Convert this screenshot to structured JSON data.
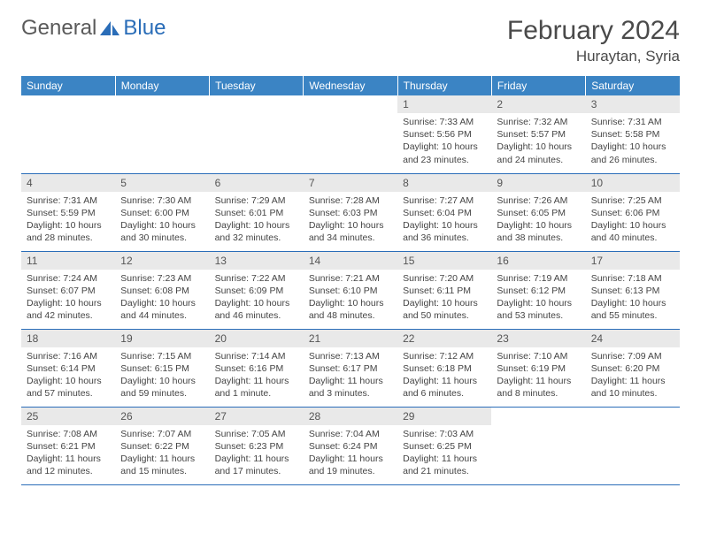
{
  "brand": {
    "part1": "General",
    "part2": "Blue"
  },
  "header": {
    "month_title": "February 2024",
    "location": "Huraytan, Syria"
  },
  "colors": {
    "header_blue": "#3b84c4",
    "border_blue": "#2a6db8",
    "daynum_bg": "#e9e9e9",
    "text": "#444444",
    "logo_gray": "#5a5a5a"
  },
  "weekdays": [
    "Sunday",
    "Monday",
    "Tuesday",
    "Wednesday",
    "Thursday",
    "Friday",
    "Saturday"
  ],
  "weeks": [
    [
      {
        "empty": true
      },
      {
        "empty": true
      },
      {
        "empty": true
      },
      {
        "empty": true
      },
      {
        "day": "1",
        "sunrise": "Sunrise: 7:33 AM",
        "sunset": "Sunset: 5:56 PM",
        "daylight": "Daylight: 10 hours and 23 minutes."
      },
      {
        "day": "2",
        "sunrise": "Sunrise: 7:32 AM",
        "sunset": "Sunset: 5:57 PM",
        "daylight": "Daylight: 10 hours and 24 minutes."
      },
      {
        "day": "3",
        "sunrise": "Sunrise: 7:31 AM",
        "sunset": "Sunset: 5:58 PM",
        "daylight": "Daylight: 10 hours and 26 minutes."
      }
    ],
    [
      {
        "day": "4",
        "sunrise": "Sunrise: 7:31 AM",
        "sunset": "Sunset: 5:59 PM",
        "daylight": "Daylight: 10 hours and 28 minutes."
      },
      {
        "day": "5",
        "sunrise": "Sunrise: 7:30 AM",
        "sunset": "Sunset: 6:00 PM",
        "daylight": "Daylight: 10 hours and 30 minutes."
      },
      {
        "day": "6",
        "sunrise": "Sunrise: 7:29 AM",
        "sunset": "Sunset: 6:01 PM",
        "daylight": "Daylight: 10 hours and 32 minutes."
      },
      {
        "day": "7",
        "sunrise": "Sunrise: 7:28 AM",
        "sunset": "Sunset: 6:03 PM",
        "daylight": "Daylight: 10 hours and 34 minutes."
      },
      {
        "day": "8",
        "sunrise": "Sunrise: 7:27 AM",
        "sunset": "Sunset: 6:04 PM",
        "daylight": "Daylight: 10 hours and 36 minutes."
      },
      {
        "day": "9",
        "sunrise": "Sunrise: 7:26 AM",
        "sunset": "Sunset: 6:05 PM",
        "daylight": "Daylight: 10 hours and 38 minutes."
      },
      {
        "day": "10",
        "sunrise": "Sunrise: 7:25 AM",
        "sunset": "Sunset: 6:06 PM",
        "daylight": "Daylight: 10 hours and 40 minutes."
      }
    ],
    [
      {
        "day": "11",
        "sunrise": "Sunrise: 7:24 AM",
        "sunset": "Sunset: 6:07 PM",
        "daylight": "Daylight: 10 hours and 42 minutes."
      },
      {
        "day": "12",
        "sunrise": "Sunrise: 7:23 AM",
        "sunset": "Sunset: 6:08 PM",
        "daylight": "Daylight: 10 hours and 44 minutes."
      },
      {
        "day": "13",
        "sunrise": "Sunrise: 7:22 AM",
        "sunset": "Sunset: 6:09 PM",
        "daylight": "Daylight: 10 hours and 46 minutes."
      },
      {
        "day": "14",
        "sunrise": "Sunrise: 7:21 AM",
        "sunset": "Sunset: 6:10 PM",
        "daylight": "Daylight: 10 hours and 48 minutes."
      },
      {
        "day": "15",
        "sunrise": "Sunrise: 7:20 AM",
        "sunset": "Sunset: 6:11 PM",
        "daylight": "Daylight: 10 hours and 50 minutes."
      },
      {
        "day": "16",
        "sunrise": "Sunrise: 7:19 AM",
        "sunset": "Sunset: 6:12 PM",
        "daylight": "Daylight: 10 hours and 53 minutes."
      },
      {
        "day": "17",
        "sunrise": "Sunrise: 7:18 AM",
        "sunset": "Sunset: 6:13 PM",
        "daylight": "Daylight: 10 hours and 55 minutes."
      }
    ],
    [
      {
        "day": "18",
        "sunrise": "Sunrise: 7:16 AM",
        "sunset": "Sunset: 6:14 PM",
        "daylight": "Daylight: 10 hours and 57 minutes."
      },
      {
        "day": "19",
        "sunrise": "Sunrise: 7:15 AM",
        "sunset": "Sunset: 6:15 PM",
        "daylight": "Daylight: 10 hours and 59 minutes."
      },
      {
        "day": "20",
        "sunrise": "Sunrise: 7:14 AM",
        "sunset": "Sunset: 6:16 PM",
        "daylight": "Daylight: 11 hours and 1 minute."
      },
      {
        "day": "21",
        "sunrise": "Sunrise: 7:13 AM",
        "sunset": "Sunset: 6:17 PM",
        "daylight": "Daylight: 11 hours and 3 minutes."
      },
      {
        "day": "22",
        "sunrise": "Sunrise: 7:12 AM",
        "sunset": "Sunset: 6:18 PM",
        "daylight": "Daylight: 11 hours and 6 minutes."
      },
      {
        "day": "23",
        "sunrise": "Sunrise: 7:10 AM",
        "sunset": "Sunset: 6:19 PM",
        "daylight": "Daylight: 11 hours and 8 minutes."
      },
      {
        "day": "24",
        "sunrise": "Sunrise: 7:09 AM",
        "sunset": "Sunset: 6:20 PM",
        "daylight": "Daylight: 11 hours and 10 minutes."
      }
    ],
    [
      {
        "day": "25",
        "sunrise": "Sunrise: 7:08 AM",
        "sunset": "Sunset: 6:21 PM",
        "daylight": "Daylight: 11 hours and 12 minutes."
      },
      {
        "day": "26",
        "sunrise": "Sunrise: 7:07 AM",
        "sunset": "Sunset: 6:22 PM",
        "daylight": "Daylight: 11 hours and 15 minutes."
      },
      {
        "day": "27",
        "sunrise": "Sunrise: 7:05 AM",
        "sunset": "Sunset: 6:23 PM",
        "daylight": "Daylight: 11 hours and 17 minutes."
      },
      {
        "day": "28",
        "sunrise": "Sunrise: 7:04 AM",
        "sunset": "Sunset: 6:24 PM",
        "daylight": "Daylight: 11 hours and 19 minutes."
      },
      {
        "day": "29",
        "sunrise": "Sunrise: 7:03 AM",
        "sunset": "Sunset: 6:25 PM",
        "daylight": "Daylight: 11 hours and 21 minutes."
      },
      {
        "empty": true
      },
      {
        "empty": true
      }
    ]
  ]
}
